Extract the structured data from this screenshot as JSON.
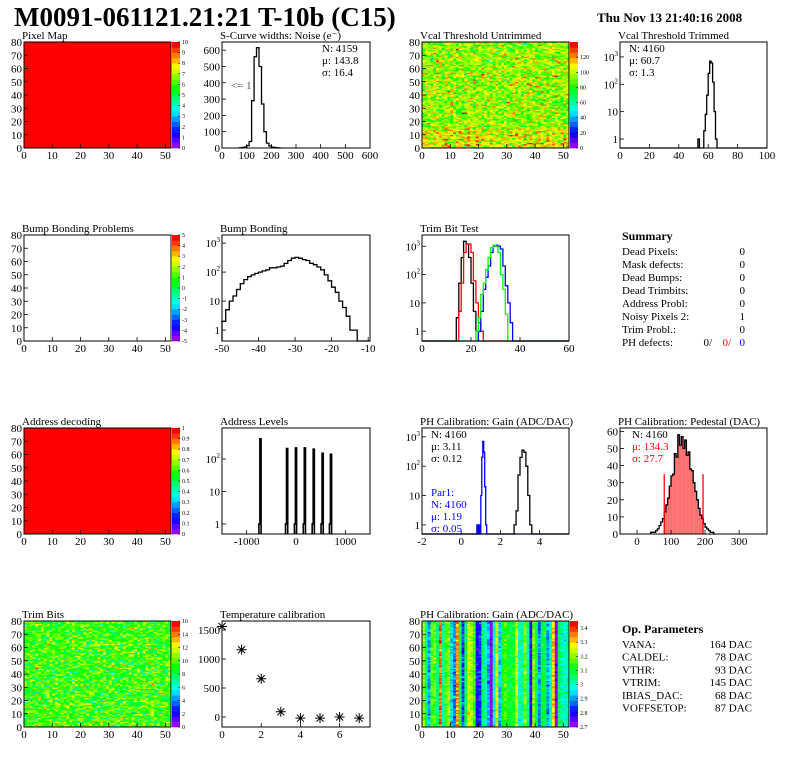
{
  "header": {
    "title": "M0091-061121.21:21 T-10b (C15)",
    "date": "Thu Nov 13 21:40:16 2008"
  },
  "colors": {
    "palette": "rainbow (purple-blue-cyan-green-yellow-red)",
    "red": "#ff0000",
    "blue": "#0000ff",
    "green": "#00ff00",
    "black": "#000000"
  },
  "chart_data": [
    {
      "title": "Pixel Map",
      "type": "heatmap",
      "xlim": [
        0,
        52
      ],
      "ylim": [
        0,
        80
      ],
      "xticks": [
        0,
        10,
        20,
        30,
        40,
        50
      ],
      "yticks": [
        0,
        10,
        20,
        30,
        40,
        50,
        60,
        70,
        80
      ],
      "zlim": [
        0,
        10
      ],
      "zticks": [
        "0",
        "1",
        "2",
        "3",
        "4",
        "5",
        "6",
        "7",
        "8",
        "9",
        "10"
      ],
      "uniform_value": 10
    },
    {
      "title": "S-Curve widths: Noise (e⁻)",
      "type": "bar",
      "xlim": [
        0,
        600
      ],
      "ylim": [
        0,
        650
      ],
      "xticks": [
        0,
        100,
        200,
        300,
        400,
        500,
        600
      ],
      "yticks": [
        0,
        100,
        200,
        300,
        400,
        500,
        600
      ],
      "series": [
        {
          "color": "#000000",
          "start": 70,
          "width": 10,
          "values": [
            1,
            3,
            6,
            15,
            40,
            290,
            560,
            615,
            500,
            270,
            100,
            30,
            12,
            5,
            3,
            1,
            0
          ]
        }
      ],
      "stats": [
        {
          "text": "N: 4159",
          "color": "#000000"
        },
        {
          "text": "μ: 143.8",
          "color": "#000000"
        },
        {
          "text": "σ: 16.4",
          "color": "#000000"
        }
      ],
      "annotation": "<= 1"
    },
    {
      "title": "Vcal Threshold Untrimmed",
      "type": "heatmap",
      "xlim": [
        0,
        52
      ],
      "ylim": [
        0,
        80
      ],
      "xticks": [
        0,
        10,
        20,
        30,
        40,
        50
      ],
      "yticks": [
        0,
        10,
        20,
        30,
        40,
        50,
        60,
        70,
        80
      ],
      "zlim": [
        0,
        140
      ],
      "zticks": [
        "0",
        "20",
        "40",
        "60",
        "80",
        "100",
        "120"
      ]
    },
    {
      "title": "Vcal Threshold Trimmed",
      "type": "bar",
      "ylog": true,
      "xlim": [
        0,
        100
      ],
      "ylim": [
        0.47,
        3500
      ],
      "xticks": [
        0,
        20,
        40,
        60,
        80,
        100
      ],
      "yticks": [
        1,
        10,
        100,
        1000
      ],
      "series": [
        {
          "color": "#000000",
          "start": 53,
          "width": 1,
          "values": [
            1,
            0,
            0,
            0,
            2,
            8,
            40,
            250,
            700,
            600,
            120,
            10,
            1
          ]
        }
      ],
      "stats": [
        {
          "text": "N: 4160",
          "color": "#000000"
        },
        {
          "text": "μ: 60.7",
          "color": "#000000"
        },
        {
          "text": "σ:  1.3",
          "color": "#000000"
        }
      ]
    },
    {
      "title": "Bump Bonding Problems",
      "type": "heatmap",
      "xlim": [
        0,
        52
      ],
      "ylim": [
        0,
        80
      ],
      "xticks": [
        0,
        10,
        20,
        30,
        40,
        50
      ],
      "yticks": [
        0,
        10,
        20,
        30,
        40,
        50,
        60,
        70,
        80
      ],
      "zlim": [
        -5,
        5
      ],
      "zticks": [
        "-5",
        "-4",
        "-3",
        "-2",
        "-1",
        "0",
        "1",
        "2",
        "3",
        "4",
        "5"
      ],
      "empty": true
    },
    {
      "title": "Bump Bonding",
      "type": "bar",
      "ylog": true,
      "xlim": [
        -50,
        -9.5
      ],
      "ylim": [
        0.42,
        1900
      ],
      "xticks": [
        -50,
        -40,
        -30,
        -20,
        -10
      ],
      "yticks": [
        1,
        10,
        100,
        1000
      ],
      "series": [
        {
          "color": "#000000",
          "start": -50,
          "width": 1,
          "values": [
            2,
            5,
            10,
            15,
            25,
            40,
            55,
            70,
            80,
            90,
            100,
            110,
            120,
            140,
            140,
            150,
            160,
            200,
            250,
            300,
            320,
            300,
            270,
            250,
            200,
            180,
            150,
            120,
            80,
            50,
            30,
            20,
            10,
            6,
            3,
            1,
            1
          ]
        }
      ]
    },
    {
      "title": "Trim Bit Test",
      "type": "bar",
      "ylog": true,
      "xlim": [
        0,
        60
      ],
      "ylim": [
        0.45,
        2500
      ],
      "xticks": [
        0,
        20,
        40,
        60
      ],
      "yticks": [
        1,
        10,
        100,
        1000
      ],
      "series": [
        {
          "color": "#000000",
          "start": 14,
          "width": 1,
          "values": [
            3,
            50,
            400,
            1500,
            1200,
            400,
            50,
            5,
            1
          ]
        },
        {
          "color": "#ff0000",
          "start": 15,
          "width": 1,
          "values": [
            5,
            50,
            600,
            1200,
            1200,
            600,
            60,
            10,
            2,
            1
          ]
        },
        {
          "color": "#0000ff",
          "start": 23,
          "width": 1,
          "values": [
            1,
            5,
            30,
            80,
            200,
            600,
            1000,
            1100,
            1000,
            800,
            200,
            40,
            10,
            2
          ]
        },
        {
          "color": "#00ff00",
          "start": 22,
          "width": 1,
          "values": [
            1,
            3,
            20,
            50,
            150,
            400,
            900,
            1100,
            1000,
            600,
            100,
            30,
            4
          ]
        }
      ]
    },
    {
      "title": "Address decoding",
      "type": "heatmap",
      "xlim": [
        0,
        52
      ],
      "ylim": [
        0,
        80
      ],
      "xticks": [
        0,
        10,
        20,
        30,
        40,
        50
      ],
      "yticks": [
        0,
        10,
        20,
        30,
        40,
        50,
        60,
        70,
        80
      ],
      "zlim": [
        0,
        1
      ],
      "zticks": [
        "0",
        "0.1",
        "0.2",
        "0.3",
        "0.4",
        "0.5",
        "0.6",
        "0.7",
        "0.8",
        "0.9",
        "1"
      ],
      "uniform_value": 1
    },
    {
      "title": "Address Levels",
      "type": "bar",
      "ylog": true,
      "xlim": [
        -1500,
        1500
      ],
      "ylim": [
        0.49,
        900
      ],
      "xticks": [
        -1000,
        0,
        1000
      ],
      "yticks": [
        1,
        10,
        100
      ],
      "peaks": [
        {
          "x": -720,
          "value": 420
        },
        {
          "x": -180,
          "value": 210
        },
        {
          "x": 0,
          "value": 220
        },
        {
          "x": 180,
          "value": 220
        },
        {
          "x": 360,
          "value": 200
        },
        {
          "x": 540,
          "value": 150
        },
        {
          "x": 710,
          "value": 140
        }
      ]
    },
    {
      "title": "PH Calibration: Gain (ADC/DAC)",
      "type": "bar",
      "ylog": true,
      "xlim": [
        -2,
        5.5
      ],
      "ylim": [
        0.49,
        2000
      ],
      "xticks": [
        -2,
        0,
        2,
        4
      ],
      "yticks": [
        1,
        10,
        100,
        1000
      ],
      "series": [
        {
          "color": "#0000ff",
          "start": 0.8,
          "width": 0.05,
          "values": [
            1,
            0,
            1,
            0,
            10,
            200,
            700,
            300,
            20,
            1
          ]
        },
        {
          "color": "#000000",
          "start": 2.7,
          "width": 0.1,
          "values": [
            1,
            3,
            50,
            200,
            350,
            300,
            100,
            10,
            1
          ]
        }
      ],
      "stats": [
        {
          "text": "N: 4160",
          "color": "#000000"
        },
        {
          "text": "μ: 3.11",
          "color": "#000000"
        },
        {
          "text": "σ: 0.12",
          "color": "#000000"
        }
      ],
      "stats2": [
        {
          "text": "Par1:",
          "color": "#0000ff"
        },
        {
          "text": "N: 4160",
          "color": "#0000ff"
        },
        {
          "text": "μ: 1.19",
          "color": "#0000ff"
        },
        {
          "text": "σ: 0.05",
          "color": "#0000ff"
        }
      ]
    },
    {
      "title": "PH Calibration: Pedestal (DAC)",
      "type": "bar",
      "xlim": [
        -50,
        382
      ],
      "ylim": [
        0,
        62
      ],
      "xticks": [
        0,
        100,
        200,
        300
      ],
      "yticks": [
        0,
        10,
        20,
        30,
        40,
        50,
        60
      ],
      "series": [
        {
          "color": "#000000",
          "start": 40,
          "width": 5,
          "values": [
            1,
            1,
            1,
            2,
            3,
            5,
            7,
            9,
            13,
            17,
            21,
            28,
            34,
            35,
            47,
            45,
            58,
            52,
            57,
            50,
            55,
            46,
            48,
            38,
            37,
            30,
            25,
            20,
            15,
            11,
            9,
            6,
            4,
            3,
            2,
            1,
            1,
            0
          ]
        }
      ],
      "fit_range": [
        80,
        194
      ],
      "fit_color": "#ff0000",
      "stats": [
        {
          "text": "N: 4160",
          "color": "#000000"
        },
        {
          "text": "μ: 134.3",
          "color": "#ff0000"
        },
        {
          "text": "σ: 27.7",
          "color": "#ff0000"
        }
      ]
    },
    {
      "title": "Trim Bits",
      "type": "heatmap",
      "xlim": [
        0,
        52
      ],
      "ylim": [
        0,
        80
      ],
      "xticks": [
        0,
        10,
        20,
        30,
        40,
        50
      ],
      "yticks": [
        0,
        10,
        20,
        30,
        40,
        50,
        60,
        70,
        80
      ],
      "zlim": [
        0,
        16
      ],
      "zticks": [
        "0",
        "2",
        "4",
        "6",
        "8",
        "10",
        "12",
        "14",
        "16"
      ]
    },
    {
      "title": "Temperature calibration",
      "type": "scatter",
      "xlim": [
        0,
        7.55
      ],
      "ylim": [
        -172,
        1655
      ],
      "xticks": [
        0,
        2,
        4,
        6
      ],
      "yticks": [
        0,
        500,
        1000,
        1500
      ],
      "x": [
        0,
        1,
        2,
        3,
        4,
        5,
        6,
        7
      ],
      "y": [
        1560,
        1160,
        660,
        90,
        -20,
        -20,
        0,
        -20
      ]
    },
    {
      "title": "PH Calibration: Gain (ADC/DAC)",
      "type": "heatmap",
      "xlim": [
        0,
        52
      ],
      "ylim": [
        0,
        80
      ],
      "xticks": [
        0,
        10,
        20,
        30,
        40,
        50
      ],
      "yticks": [
        0,
        10,
        20,
        30,
        40,
        50,
        60,
        70,
        80
      ],
      "zlim": [
        2.7,
        3.45
      ],
      "zticks": [
        "2.7",
        "2.8",
        "2.9",
        "3",
        "3.1",
        "3.2",
        "3.3",
        "3.4"
      ]
    }
  ],
  "summary": {
    "title": "Summary",
    "rows": [
      {
        "label": "Dead Pixels:",
        "value": "0"
      },
      {
        "label": "Mask defects:",
        "value": "0"
      },
      {
        "label": "Dead Bumps:",
        "value": "0"
      },
      {
        "label": "Dead Trimbits:",
        "value": "0"
      },
      {
        "label": "Address Probl:",
        "value": "0"
      },
      {
        "label": "Noisy Pixels 2:",
        "value": "1"
      },
      {
        "label": "Trim Probl.:",
        "value": "0"
      }
    ],
    "ph_defects": {
      "label": "PH defects:",
      "v1": "0/",
      "v2": "0/",
      "v3": "0"
    }
  },
  "op_parameters": {
    "title": "Op. Parameters",
    "rows": [
      {
        "label": "VANA:",
        "value": "164 DAC"
      },
      {
        "label": "CALDEL:",
        "value": "78 DAC"
      },
      {
        "label": "VTHR:",
        "value": "93 DAC"
      },
      {
        "label": "VTRIM:",
        "value": "145 DAC"
      },
      {
        "label": "IBIAS_DAC:",
        "value": "68 DAC"
      },
      {
        "label": "VOFFSETOP:",
        "value": "87 DAC"
      }
    ]
  }
}
